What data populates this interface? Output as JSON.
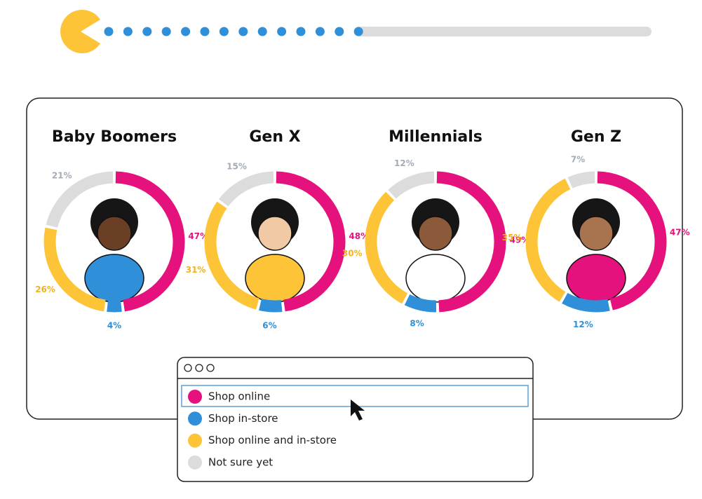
{
  "chart_data": {
    "type": "donut",
    "categories": [
      "Shop online",
      "Shop in-store",
      "Shop online and in-store",
      "Not sure yet"
    ],
    "colors": [
      "#e5127d",
      "#2f8fd8",
      "#fcc436",
      "#dcdcdc"
    ],
    "label_colors": [
      "#e5127d",
      "#2f8fd8",
      "#f2b31c",
      "#a3acb6"
    ],
    "series": [
      {
        "name": "Baby Boomers",
        "values": [
          47,
          4,
          26,
          21
        ],
        "value_labels": [
          "47%",
          "4%",
          "26%",
          "21%"
        ]
      },
      {
        "name": "Gen X",
        "values": [
          48,
          6,
          31,
          15
        ],
        "value_labels": [
          "48%",
          "6%",
          "31%",
          "15%"
        ]
      },
      {
        "name": "Millennials",
        "values": [
          49,
          8,
          30,
          12
        ],
        "value_labels": [
          "49%",
          "8%",
          "30%",
          "12%"
        ]
      },
      {
        "name": "Gen Z",
        "values": [
          47,
          12,
          35,
          7
        ],
        "value_labels": [
          "47%",
          "12%",
          "35%",
          "7%"
        ]
      }
    ]
  }
}
